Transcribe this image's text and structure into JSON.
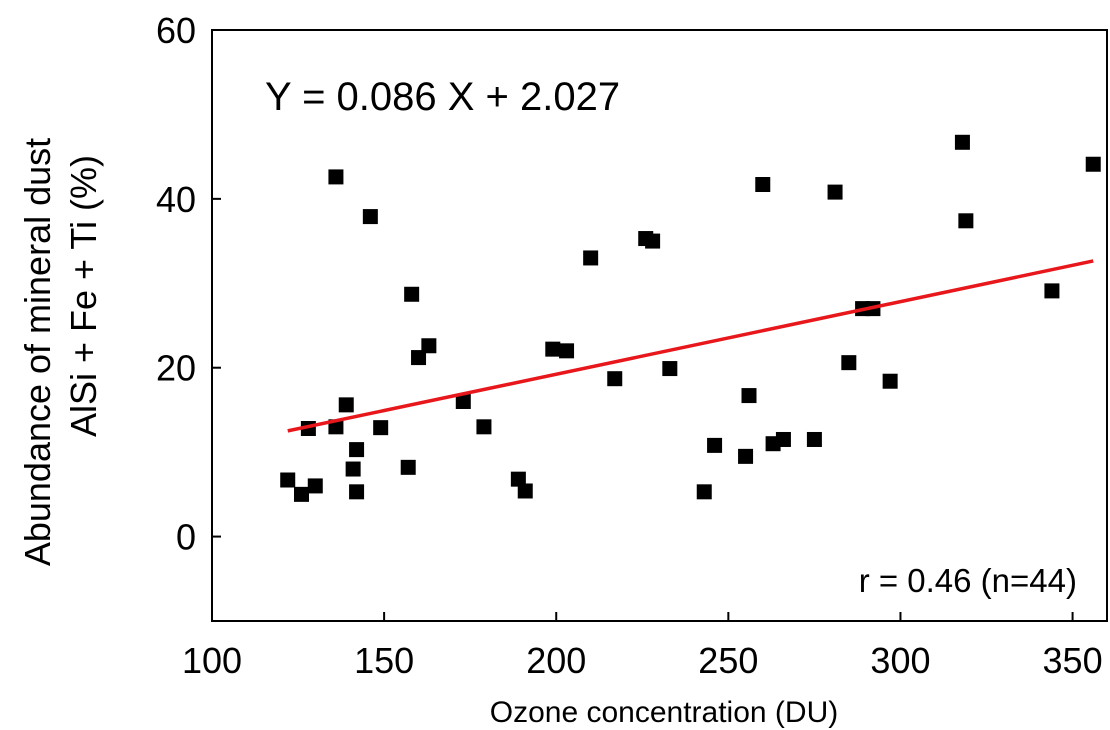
{
  "chart_data": {
    "type": "scatter",
    "xlabel": "Ozone concentration (DU)",
    "ylabel_lines": [
      "Abundance of mineral dust",
      "AlSi + Fe + Ti (%)"
    ],
    "xlim": [
      100,
      360
    ],
    "ylim": [
      -10,
      60
    ],
    "xticks": [
      100,
      150,
      200,
      250,
      300,
      350
    ],
    "yticks": [
      0,
      20,
      40,
      60
    ],
    "xtick_labels": [
      "100",
      "150",
      "200",
      "250",
      "300",
      "350"
    ],
    "ytick_labels": [
      "0",
      "20",
      "40",
      "60"
    ],
    "grid": false,
    "marker": "square",
    "marker_color": "#000000",
    "fit_line_color": "#e8171b",
    "equation_text": "Y = 0.086 X + 2.027",
    "stats_text": "r = 0.46 (n=44)",
    "fit": {
      "slope": 0.086,
      "intercept": 2.027,
      "x_range": [
        122,
        356
      ]
    },
    "points": [
      [
        122,
        6.7
      ],
      [
        126,
        5.0
      ],
      [
        128,
        12.8
      ],
      [
        130,
        6.0
      ],
      [
        136,
        13.0
      ],
      [
        136,
        42.6
      ],
      [
        139,
        15.6
      ],
      [
        141,
        8.0
      ],
      [
        142,
        5.3
      ],
      [
        142,
        10.3
      ],
      [
        146,
        37.9
      ],
      [
        149,
        12.9
      ],
      [
        157,
        8.2
      ],
      [
        158,
        28.7
      ],
      [
        160,
        21.2
      ],
      [
        163,
        22.6
      ],
      [
        173,
        16.0
      ],
      [
        179,
        13.0
      ],
      [
        189,
        6.8
      ],
      [
        191,
        5.4
      ],
      [
        199,
        22.2
      ],
      [
        203,
        22.0
      ],
      [
        210,
        33.0
      ],
      [
        217,
        18.7
      ],
      [
        226,
        35.3
      ],
      [
        228,
        35.0
      ],
      [
        233,
        19.9
      ],
      [
        243,
        5.3
      ],
      [
        246,
        10.8
      ],
      [
        255,
        9.5
      ],
      [
        256,
        16.7
      ],
      [
        260,
        41.7
      ],
      [
        263,
        11.0
      ],
      [
        266,
        11.5
      ],
      [
        275,
        11.5
      ],
      [
        281,
        40.8
      ],
      [
        285,
        20.6
      ],
      [
        289,
        27.0
      ],
      [
        292,
        27.0
      ],
      [
        297,
        18.4
      ],
      [
        318,
        46.7
      ],
      [
        319,
        37.4
      ],
      [
        344,
        29.1
      ],
      [
        356,
        44.1
      ]
    ]
  }
}
